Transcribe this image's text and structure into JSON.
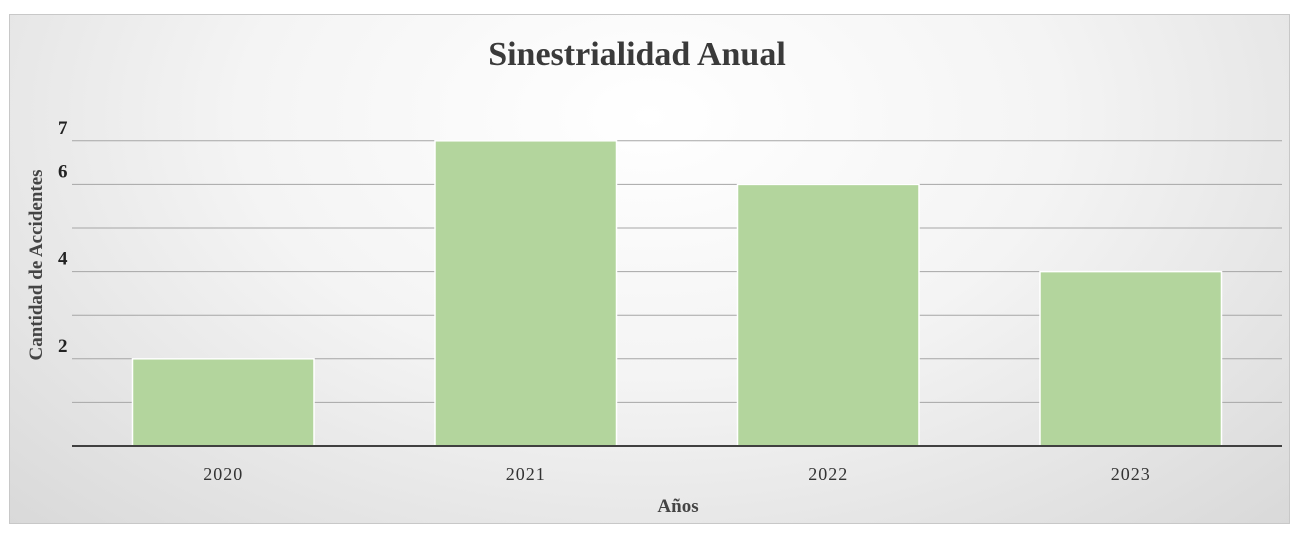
{
  "chart_data": {
    "type": "bar",
    "title": "Sinestrialidad Anual",
    "xlabel": "Años",
    "ylabel": "Cantidad de Accidentes",
    "categories": [
      "2020",
      "2021",
      "2022",
      "2023"
    ],
    "values": [
      2,
      7,
      6,
      4
    ],
    "y_tick_labels": [
      {
        "value": 2,
        "label": "2"
      },
      {
        "value": 4,
        "label": "4"
      },
      {
        "value": 6,
        "label": "6"
      },
      {
        "value": 7,
        "label": "7"
      }
    ],
    "ylim": [
      0,
      7
    ],
    "grid": true,
    "legend": "none",
    "colors": {
      "bar_fill": "#b3d59d",
      "bar_stroke": "#ffffff",
      "grid": "#a6a6a6",
      "axis": "#404040"
    }
  }
}
